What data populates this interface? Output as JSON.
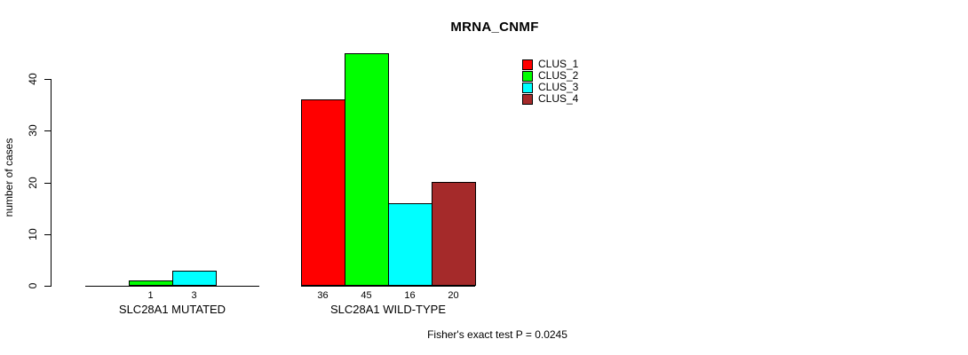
{
  "window": {
    "background": "#ffffff"
  },
  "chart_data": {
    "type": "bar",
    "title": "MRNA_CNMF",
    "xlabel": "",
    "ylabel": "number of cases",
    "ylim": [
      0,
      45
    ],
    "yticks": [
      0,
      10,
      20,
      30,
      40
    ],
    "grid": false,
    "legend_position": "top-right",
    "series": [
      {
        "name": "CLUS_1",
        "color": "#FF0000"
      },
      {
        "name": "CLUS_2",
        "color": "#00FF00"
      },
      {
        "name": "CLUS_3",
        "color": "#00FFFF"
      },
      {
        "name": "CLUS_4",
        "color": "#A52A2A"
      }
    ],
    "groups": [
      {
        "label": "SLC28A1 MUTATED",
        "values": [
          0,
          1,
          3,
          0
        ],
        "bar_labels": [
          "",
          "1",
          "3",
          ""
        ]
      },
      {
        "label": "SLC28A1 WILD-TYPE",
        "values": [
          36,
          45,
          16,
          20
        ],
        "bar_labels": [
          "36",
          "45",
          "16",
          "20"
        ]
      }
    ],
    "annotation": "Fisher's exact test P = 0.0245"
  }
}
